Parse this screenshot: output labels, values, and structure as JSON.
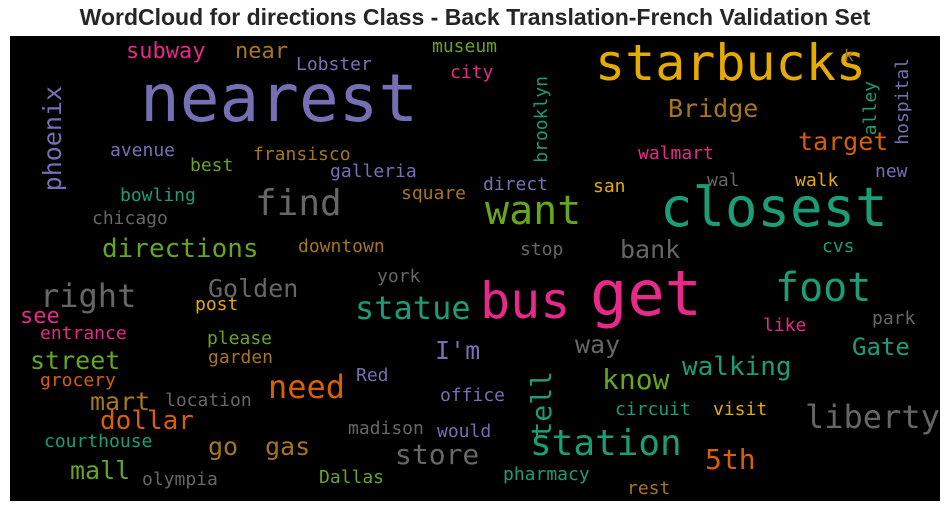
{
  "title": "WordCloud for directions Class - Back Translation-French Validation Set",
  "background": "#000000",
  "words": [
    {
      "text": "nearest",
      "color": "#7570b3"
    },
    {
      "text": "starbucks",
      "color": "#e6ab02"
    },
    {
      "text": "closest",
      "color": "#1b9e77"
    },
    {
      "text": "get",
      "color": "#e7298a"
    },
    {
      "text": "bus",
      "color": "#e7298a"
    },
    {
      "text": "foot",
      "color": "#1b9e77"
    },
    {
      "text": "want",
      "color": "#66a61e"
    },
    {
      "text": "find",
      "color": "#666666"
    },
    {
      "text": "station",
      "color": "#1b9e77"
    },
    {
      "text": "liberty",
      "color": "#666666"
    },
    {
      "text": "need",
      "color": "#d95f02"
    },
    {
      "text": "statue",
      "color": "#1b9e77"
    },
    {
      "text": "right",
      "color": "#666666"
    },
    {
      "text": "directions",
      "color": "#66a61e"
    },
    {
      "text": "store",
      "color": "#666666"
    },
    {
      "text": "5th",
      "color": "#d95f02"
    },
    {
      "text": "know",
      "color": "#66a61e"
    },
    {
      "text": "Bridge",
      "color": "#a6761d"
    },
    {
      "text": "Golden",
      "color": "#666666"
    },
    {
      "text": "walking",
      "color": "#1b9e77"
    },
    {
      "text": "dollar",
      "color": "#d95f02"
    },
    {
      "text": "street",
      "color": "#66a61e"
    },
    {
      "text": "mart",
      "color": "#a6761d"
    },
    {
      "text": "go",
      "color": "#a6761d"
    },
    {
      "text": "gas",
      "color": "#a6761d"
    },
    {
      "text": "mall",
      "color": "#66a61e"
    },
    {
      "text": "tell",
      "color": "#1b9e77"
    },
    {
      "text": "way",
      "color": "#666666"
    },
    {
      "text": "Gate",
      "color": "#1b9e77"
    },
    {
      "text": "I'm",
      "color": "#7570b3"
    },
    {
      "text": "target",
      "color": "#d95f02"
    },
    {
      "text": "bank",
      "color": "#666666"
    },
    {
      "text": "phoenix",
      "color": "#7570b3"
    },
    {
      "text": "subway",
      "color": "#e7298a"
    },
    {
      "text": "near",
      "color": "#a6761d"
    },
    {
      "text": "see",
      "color": "#e7298a"
    },
    {
      "text": "hospital",
      "color": "#7570b3"
    },
    {
      "text": "alley",
      "color": "#1b9e77"
    },
    {
      "text": "brooklyn",
      "color": "#1b9e77"
    },
    {
      "text": "Lobster",
      "color": "#7570b3"
    },
    {
      "text": "museum",
      "color": "#66a61e"
    },
    {
      "text": "city",
      "color": "#e7298a"
    },
    {
      "text": "k",
      "color": "#a6761d"
    },
    {
      "text": "avenue",
      "color": "#7570b3"
    },
    {
      "text": "best",
      "color": "#66a61e"
    },
    {
      "text": "fransisco",
      "color": "#a6761d"
    },
    {
      "text": "galleria",
      "color": "#7570b3"
    },
    {
      "text": "walmart",
      "color": "#e7298a"
    },
    {
      "text": "bowling",
      "color": "#1b9e77"
    },
    {
      "text": "direct",
      "color": "#7570b3"
    },
    {
      "text": "san",
      "color": "#e6ab02"
    },
    {
      "text": "wal",
      "color": "#666666"
    },
    {
      "text": "walk",
      "color": "#e6ab02"
    },
    {
      "text": "new",
      "color": "#7570b3"
    },
    {
      "text": "chicago",
      "color": "#666666"
    },
    {
      "text": "square",
      "color": "#a6761d"
    },
    {
      "text": "downtown",
      "color": "#a6761d"
    },
    {
      "text": "stop",
      "color": "#666666"
    },
    {
      "text": "cvs",
      "color": "#1b9e77"
    },
    {
      "text": "york",
      "color": "#666666"
    },
    {
      "text": "post",
      "color": "#e6ab02"
    },
    {
      "text": "entrance",
      "color": "#e7298a"
    },
    {
      "text": "please",
      "color": "#66a61e"
    },
    {
      "text": "park",
      "color": "#666666"
    },
    {
      "text": "like",
      "color": "#e7298a"
    },
    {
      "text": "garden",
      "color": "#a6761d"
    },
    {
      "text": "grocery",
      "color": "#d95f02"
    },
    {
      "text": "Red",
      "color": "#7570b3"
    },
    {
      "text": "location",
      "color": "#666666"
    },
    {
      "text": "office",
      "color": "#7570b3"
    },
    {
      "text": "circuit",
      "color": "#1b9e77"
    },
    {
      "text": "visit",
      "color": "#e6ab02"
    },
    {
      "text": "courthouse",
      "color": "#1b9e77"
    },
    {
      "text": "madison",
      "color": "#666666"
    },
    {
      "text": "would",
      "color": "#7570b3"
    },
    {
      "text": "olympia",
      "color": "#666666"
    },
    {
      "text": "Dallas",
      "color": "#66a61e"
    },
    {
      "text": "pharmacy",
      "color": "#1b9e77"
    },
    {
      "text": "rest",
      "color": "#a6761d"
    }
  ]
}
